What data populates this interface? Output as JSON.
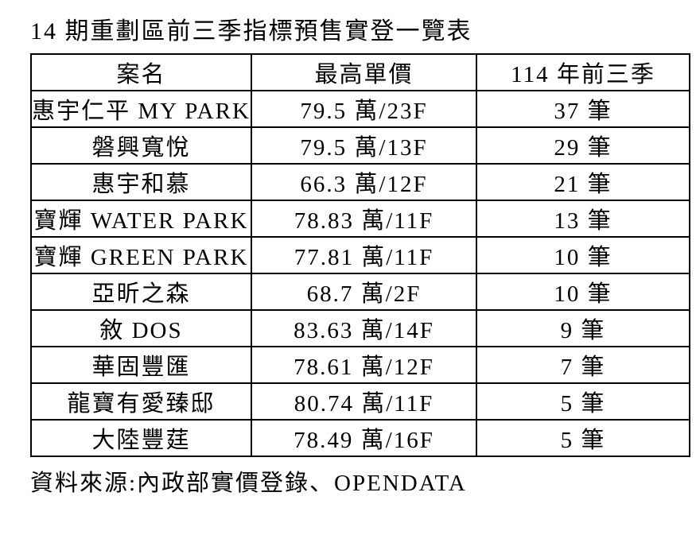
{
  "page": {
    "title": "14 期重劃區前三季指標預售實登一覽表",
    "source_note": "資料來源:內政部實價登錄、OPENDATA"
  },
  "colors": {
    "background": "#ffffff",
    "text": "#000000",
    "table_border": "#000000"
  },
  "table": {
    "headers": {
      "project": "案名",
      "max_price": "最高單價",
      "period": "114 年前三季"
    },
    "rows": [
      {
        "project": "惠宇仁平 MY PARK",
        "max_price": "79.5 萬/23F",
        "count": "37 筆"
      },
      {
        "project": "磐興寬悅",
        "max_price": "79.5 萬/13F",
        "count": "29 筆"
      },
      {
        "project": "惠宇和慕",
        "max_price": "66.3 萬/12F",
        "count": "21 筆"
      },
      {
        "project": "寶輝 WATER PARK",
        "max_price": "78.83 萬/11F",
        "count": "13 筆"
      },
      {
        "project": "寶輝 GREEN PARK",
        "max_price": "77.81 萬/11F",
        "count": "10 筆"
      },
      {
        "project": "亞昕之森",
        "max_price": "68.7 萬/2F",
        "count": "10 筆"
      },
      {
        "project": "敘 DOS",
        "max_price": "83.63 萬/14F",
        "count": "9 筆"
      },
      {
        "project": "華固豐匯",
        "max_price": "78.61 萬/12F",
        "count": "7 筆"
      },
      {
        "project": "龍寶有愛臻邸",
        "max_price": "80.74 萬/11F",
        "count": "5 筆"
      },
      {
        "project": "大陸豐莛",
        "max_price": "78.49 萬/16F",
        "count": "5 筆"
      }
    ]
  }
}
